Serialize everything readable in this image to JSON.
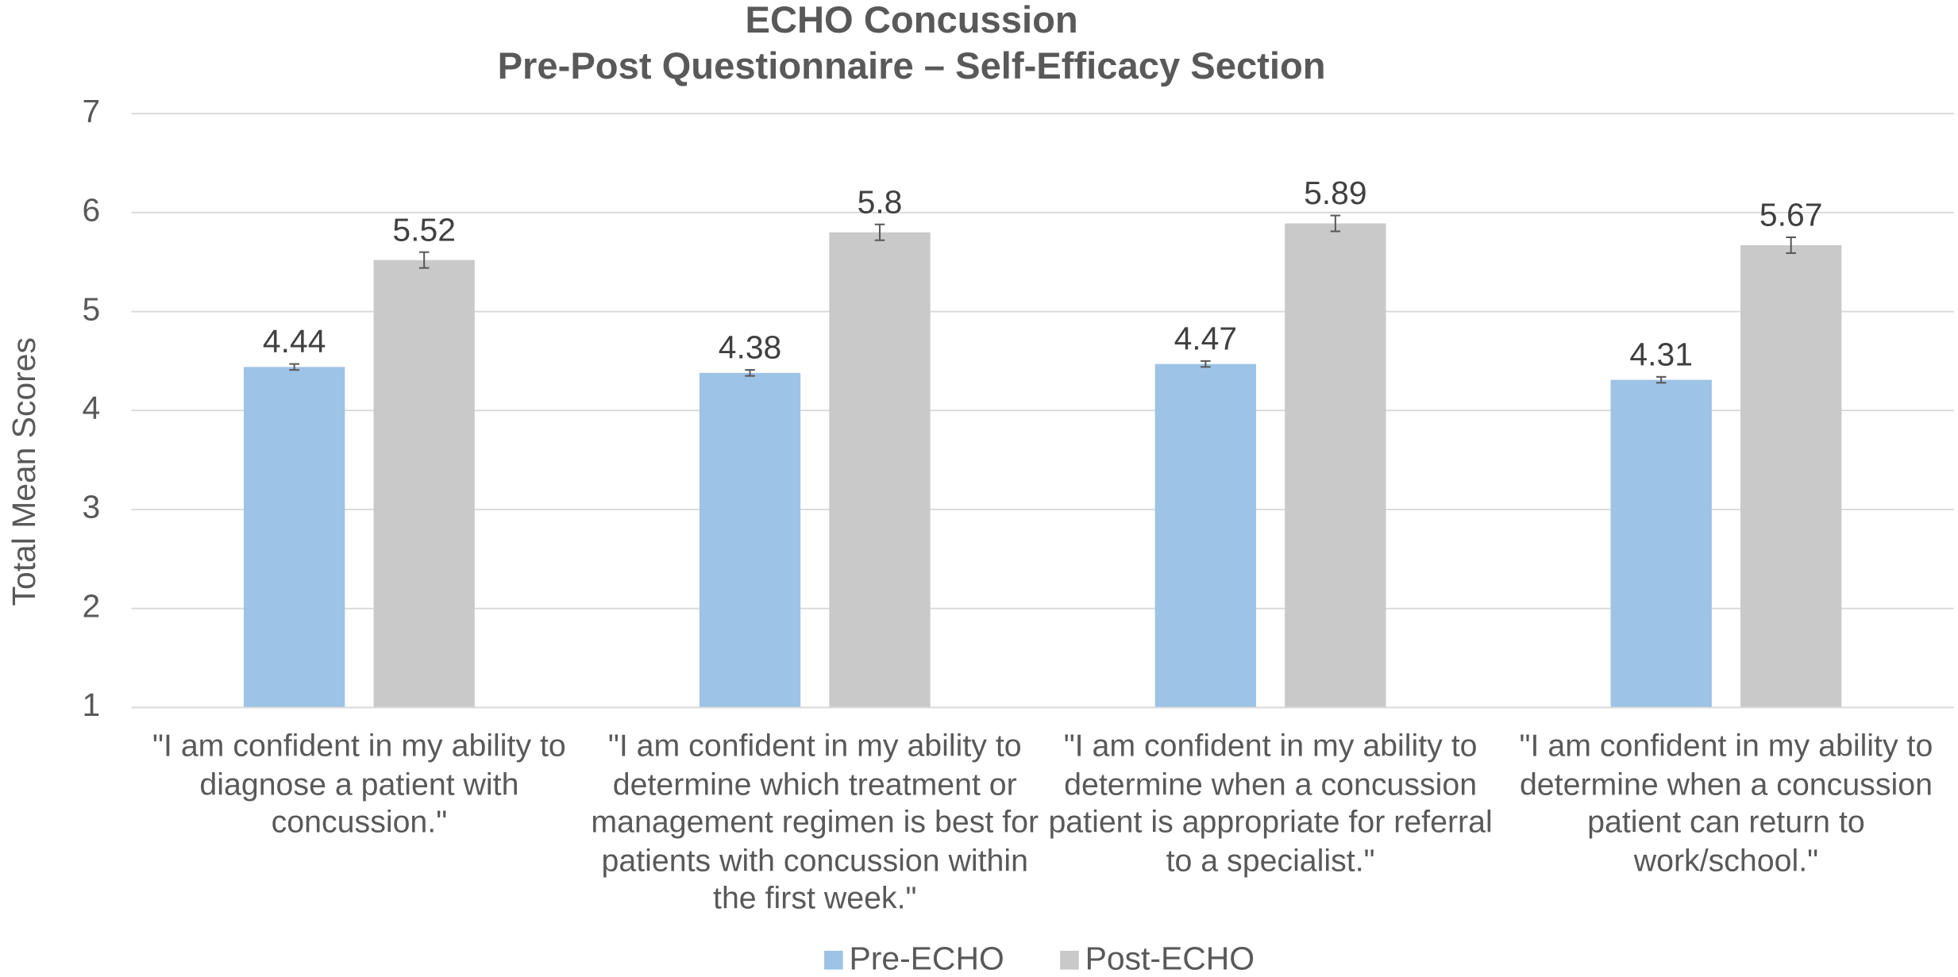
{
  "chart_data": {
    "type": "bar",
    "title": "ECHO Concussion",
    "subtitle": "Pre-Post Questionnaire – Self-Efficacy Section",
    "y_label": "Total Mean Scores",
    "categories": [
      "\"I am confident in my ability to diagnose a patient with concussion.\"",
      "\"I am confident in my ability to determine which treatment or management regimen is best for patients with concussion within the first week.\"",
      "\"I am confident in my ability to determine when a concussion patient is appropriate for referral to a specialist.\"",
      "\"I am confident in my ability to determine when a concussion patient can return to work/school.\""
    ],
    "series": [
      {
        "name": "Pre-ECHO",
        "color": "#9dc3e6",
        "values": [
          4.44,
          4.38,
          4.47,
          4.31
        ],
        "errors": [
          0.03,
          0.03,
          0.03,
          0.03
        ]
      },
      {
        "name": "Post-ECHO",
        "color": "#c9c9c9",
        "values": [
          5.52,
          5.8,
          5.89,
          5.67
        ],
        "errors": [
          0.08,
          0.08,
          0.08,
          0.08
        ]
      }
    ],
    "ylim": [
      1,
      7
    ],
    "yticks": [
      1,
      2,
      3,
      4,
      5,
      6,
      7
    ],
    "grid": true,
    "legend": "bottom"
  }
}
